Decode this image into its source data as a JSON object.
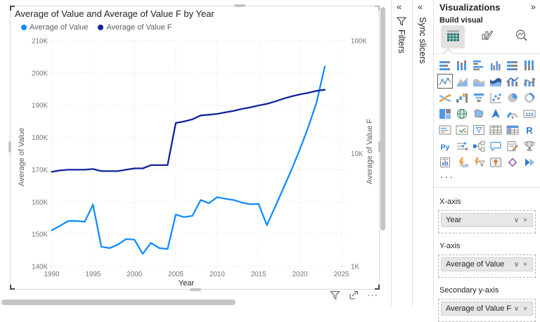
{
  "canvas": {
    "visual": {
      "title": "Average of Value and Average of Value F by Year",
      "x_axis_title": "Year",
      "left_axis_title": "Average of Value",
      "right_axis_title": "Average of Value F",
      "toolbar": {
        "more_label": "···"
      }
    }
  },
  "chart_data": {
    "type": "line",
    "title": "Average of Value and Average of Value F by Year",
    "x": [
      1990,
      1991,
      1992,
      1993,
      1994,
      1995,
      1996,
      1997,
      1998,
      1999,
      2000,
      2001,
      2002,
      2003,
      2004,
      2005,
      2006,
      2007,
      2008,
      2009,
      2010,
      2011,
      2012,
      2013,
      2014,
      2015,
      2016,
      2017,
      2018,
      2019,
      2020,
      2021,
      2022,
      2023
    ],
    "series": [
      {
        "name": "Average of Value",
        "color": "#118DFF",
        "axis": "left",
        "values_thousands": [
          151.2,
          152.6,
          154.1,
          154.1,
          153.9,
          159.2,
          146.1,
          145.7,
          146.8,
          148.5,
          148.3,
          143.9,
          147.3,
          145.7,
          145.4,
          156.1,
          155.3,
          155.7,
          160.6,
          159.6,
          161.5,
          161.0,
          160.6,
          159.8,
          159.3,
          159.4,
          152.8,
          158.5,
          164.3,
          170.1,
          176.4,
          183.2,
          190.8,
          202.0
        ]
      },
      {
        "name": "Average of Value F",
        "color": "#12239E",
        "axis": "right",
        "values_thousands": [
          6.9,
          7.1,
          7.2,
          7.2,
          7.2,
          7.3,
          7.0,
          7.0,
          7.0,
          7.2,
          7.4,
          7.4,
          7.9,
          7.9,
          7.9,
          18.7,
          19.3,
          20.1,
          21.8,
          22.1,
          22.5,
          23.2,
          23.9,
          24.9,
          25.7,
          26.7,
          27.6,
          29.0,
          30.7,
          32.2,
          33.5,
          34.6,
          36.0,
          36.8
        ]
      }
    ],
    "left_axis": {
      "title": "Average of Value",
      "scale": "linear",
      "min": 140,
      "max": 210,
      "tick_values": [
        140,
        150,
        160,
        170,
        180,
        190,
        200,
        210
      ],
      "tick_labels": [
        "140K",
        "150K",
        "160K",
        "170K",
        "180K",
        "190K",
        "200K",
        "210K"
      ]
    },
    "right_axis": {
      "title": "Average of Value F",
      "scale": "log",
      "min": 1,
      "max": 100,
      "tick_values": [
        1,
        10,
        100
      ],
      "tick_labels": [
        "1K",
        "10K",
        "100K"
      ]
    },
    "x_axis": {
      "title": "Year",
      "tick_values": [
        1990,
        1995,
        2000,
        2005,
        2010,
        2015,
        2020,
        2025
      ]
    },
    "grid": true,
    "legend_position": "top-left"
  },
  "filters_pane": {
    "title": "Filters",
    "collapse_icon": "«"
  },
  "sync_slicers_pane": {
    "title": "Sync slicers",
    "collapse_icon": "«"
  },
  "viz_pane": {
    "title": "Visualizations",
    "expand_icon": "»",
    "build_label": "Build visual",
    "tabs": [
      {
        "name": "build-visual",
        "selected": true
      },
      {
        "name": "format-visual",
        "selected": false
      },
      {
        "name": "analytics",
        "selected": false
      }
    ],
    "gallery": [
      {
        "name": "stacked-bar-chart-icon",
        "type": "hbars"
      },
      {
        "name": "stacked-column-chart-icon",
        "type": "vbars"
      },
      {
        "name": "clustered-bar-chart-icon",
        "type": "hbars2"
      },
      {
        "name": "clustered-column-chart-icon",
        "type": "vbars2"
      },
      {
        "name": "100-stacked-bar-chart-icon",
        "type": "hbars100"
      },
      {
        "name": "100-stacked-column-chart-icon",
        "type": "vbars100"
      },
      {
        "name": "line-chart-icon",
        "type": "line",
        "selected": true
      },
      {
        "name": "area-chart-icon",
        "type": "area"
      },
      {
        "name": "stacked-area-chart-icon",
        "type": "areas"
      },
      {
        "name": "100-stacked-area-chart-icon",
        "type": "wavedark"
      },
      {
        "name": "line-and-stacked-column-chart-icon",
        "type": "combo"
      },
      {
        "name": "line-and-clustered-column-chart-icon",
        "type": "combo2"
      },
      {
        "name": "ribbon-chart-icon",
        "type": "ribbon"
      },
      {
        "name": "waterfall-chart-icon",
        "type": "waterfall"
      },
      {
        "name": "funnel-chart-icon",
        "type": "funnelc"
      },
      {
        "name": "scatter-chart-icon",
        "type": "scatter"
      },
      {
        "name": "pie-chart-icon",
        "type": "pie"
      },
      {
        "name": "donut-chart-icon",
        "type": "donut"
      },
      {
        "name": "treemap-icon",
        "type": "treemap"
      },
      {
        "name": "map-icon",
        "type": "globe"
      },
      {
        "name": "filled-map-icon",
        "type": "fillmap"
      },
      {
        "name": "azure-map-icon",
        "type": "arrowhead"
      },
      {
        "name": "gauge-icon",
        "type": "gauge"
      },
      {
        "name": "card-icon",
        "type": "card123"
      },
      {
        "name": "multi-row-card-icon",
        "type": "mcard"
      },
      {
        "name": "kpi-icon",
        "type": "kpi"
      },
      {
        "name": "slicer-icon",
        "type": "slicerx"
      },
      {
        "name": "table-icon",
        "type": "tableic"
      },
      {
        "name": "matrix-icon",
        "type": "matrixic"
      },
      {
        "name": "r-script-icon",
        "type": "Rl"
      },
      {
        "name": "python-icon",
        "type": "Pyl"
      },
      {
        "name": "key-influencers-icon",
        "type": "influ"
      },
      {
        "name": "decomposition-tree-icon",
        "type": "decomp"
      },
      {
        "name": "q-and-a-icon",
        "type": "qa"
      },
      {
        "name": "smart-narrative-icon",
        "type": "narr"
      },
      {
        "name": "metrics-icon",
        "type": "trophy"
      },
      {
        "name": "paginated-report-icon",
        "type": "report"
      },
      {
        "name": "power-apps-icon",
        "type": "papps"
      },
      {
        "name": "power-automate-icon",
        "type": "pauto"
      },
      {
        "name": "arcgis-maps-icon",
        "type": "arcgis"
      },
      {
        "name": "custom-visual-icon",
        "type": "diamond"
      },
      {
        "name": "power-automate-flow-icon",
        "type": "flow"
      }
    ],
    "more_visuals_label": "···",
    "wells": [
      {
        "label": "X-axis",
        "field": "Year"
      },
      {
        "label": "Y-axis",
        "field": "Average of Value"
      },
      {
        "label": "Secondary y-axis",
        "field": "Average of Value F"
      }
    ]
  }
}
